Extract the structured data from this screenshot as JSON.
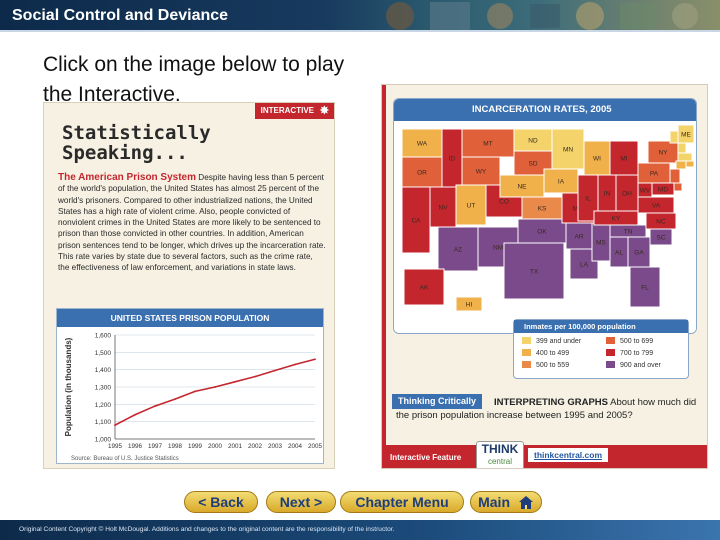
{
  "header": {
    "title": "Social Control and Deviance"
  },
  "intro": {
    "text": "Click on the image below to play the Interactive."
  },
  "left_panel": {
    "tag_label": "INTERACTIVE",
    "title": "Statistically\nSpeaking...",
    "article_heading": "The American Prison System",
    "article_body": "Despite having less than 5 percent of the world's population, the United States has almost 25 percent of the world's prisoners. Compared to other industrialized nations, the United States has a high rate of violent crime. Also, people convicted of nonviolent crimes in the United States are more likely to be sentenced to prison than those convicted in other countries. In addition, American prison sentences tend to be longer, which drives up the incarceration rate. This rate varies by state due to several factors, such as the crime rate, the effectiveness of law enforcement, and variations in state laws."
  },
  "chart_data": {
    "type": "line",
    "title": "UNITED STATES PRISON POPULATION",
    "ylabel": "Population (in thousands)",
    "xlabel": "",
    "x": [
      "1995",
      "1996",
      "1997",
      "1998",
      "1999",
      "2000",
      "2001",
      "2002",
      "2003",
      "2004",
      "2005"
    ],
    "values": [
      1080,
      1140,
      1190,
      1230,
      1275,
      1300,
      1330,
      1360,
      1395,
      1430,
      1460
    ],
    "yticks": [
      1000,
      1100,
      1200,
      1300,
      1400,
      1500,
      1600
    ],
    "ytick_labels": [
      "1,000",
      "1,100",
      "1,200",
      "1,300",
      "1,400",
      "1,500",
      "1,600"
    ],
    "ylim": [
      1000,
      1600
    ],
    "source": "Source: Bureau of U.S. Justice Statistics",
    "line_color": "#c4262e"
  },
  "map": {
    "title": "INCARCERATION RATES, 2005",
    "states": [
      "WA",
      "OR",
      "CA",
      "NV",
      "ID",
      "MT",
      "WY",
      "UT",
      "AZ",
      "CO",
      "NM",
      "ND",
      "SD",
      "NE",
      "KS",
      "OK",
      "TX",
      "MN",
      "IA",
      "MO",
      "AR",
      "LA",
      "WI",
      "IL",
      "MS",
      "MI",
      "IN",
      "KY",
      "TN",
      "AL",
      "OH",
      "GA",
      "FL",
      "SC",
      "NC",
      "VA",
      "WV",
      "PA",
      "NY",
      "ME",
      "VT",
      "NH",
      "MA",
      "RI",
      "CT",
      "NJ",
      "DE",
      "MD",
      "AK",
      "HI"
    ]
  },
  "legend": {
    "title": "Inmates per 100,000 population",
    "items": [
      {
        "label": "399 and under",
        "color": "#f3d36a"
      },
      {
        "label": "400 to 499",
        "color": "#f0b04a"
      },
      {
        "label": "500 to 559",
        "color": "#e98a4a"
      },
      {
        "label": "500 to 699",
        "color": "#e0603a"
      },
      {
        "label": "700 to 799",
        "color": "#c4262e"
      },
      {
        "label": "900 and over",
        "color": "#7a4a8a"
      }
    ]
  },
  "thinking": {
    "badge": "Thinking Critically",
    "lead": "INTERPRETING GRAPHS",
    "question": "About how much did the prison population increase between 1995 and 2005?"
  },
  "feature": {
    "label": "Interactive Feature",
    "logo_top": "THINK",
    "logo_bottom": "central",
    "url": "thinkcentral.com"
  },
  "nav": {
    "back": "< Back",
    "next": "Next >",
    "chapter": "Chapter Menu",
    "main": "Main"
  },
  "footer": {
    "text": "Original Content Copyright © Holt McDougal. Additions and changes to the original content are the responsibility of the instructor."
  }
}
